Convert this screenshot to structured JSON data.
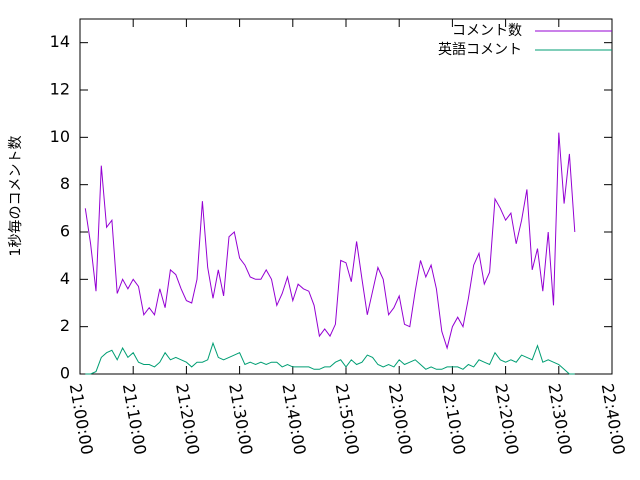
{
  "chart_data": {
    "type": "line",
    "ylabel": "1秒毎のコメント数",
    "x": [
      "21:01:00",
      "21:02:00",
      "21:03:00",
      "21:04:00",
      "21:05:00",
      "21:06:00",
      "21:07:00",
      "21:08:00",
      "21:09:00",
      "21:10:00",
      "21:11:00",
      "21:12:00",
      "21:13:00",
      "21:14:00",
      "21:15:00",
      "21:16:00",
      "21:17:00",
      "21:18:00",
      "21:19:00",
      "21:20:00",
      "21:21:00",
      "21:22:00",
      "21:23:00",
      "21:24:00",
      "21:25:00",
      "21:26:00",
      "21:27:00",
      "21:28:00",
      "21:29:00",
      "21:30:00",
      "21:31:00",
      "21:32:00",
      "21:33:00",
      "21:34:00",
      "21:35:00",
      "21:36:00",
      "21:37:00",
      "21:38:00",
      "21:39:00",
      "21:40:00",
      "21:41:00",
      "21:42:00",
      "21:43:00",
      "21:44:00",
      "21:45:00",
      "21:46:00",
      "21:47:00",
      "21:48:00",
      "21:49:00",
      "21:50:00",
      "21:51:00",
      "21:52:00",
      "21:53:00",
      "21:54:00",
      "21:55:00",
      "21:56:00",
      "21:57:00",
      "21:58:00",
      "21:59:00",
      "22:00:00",
      "22:01:00",
      "22:02:00",
      "22:03:00",
      "22:04:00",
      "22:05:00",
      "22:06:00",
      "22:07:00",
      "22:08:00",
      "22:09:00",
      "22:10:00",
      "22:11:00",
      "22:12:00",
      "22:13:00",
      "22:14:00",
      "22:15:00",
      "22:16:00",
      "22:17:00",
      "22:18:00",
      "22:19:00",
      "22:20:00",
      "22:21:00",
      "22:22:00",
      "22:23:00",
      "22:24:00",
      "22:25:00",
      "22:26:00",
      "22:27:00",
      "22:28:00",
      "22:29:00",
      "22:30:00",
      "22:31:00",
      "22:32:00",
      "22:33:00"
    ],
    "series": [
      {
        "name": "コメント数",
        "color": "#9400d3",
        "values": [
          7.0,
          5.5,
          3.5,
          8.8,
          6.2,
          6.5,
          3.4,
          4.0,
          3.6,
          4.0,
          3.7,
          2.5,
          2.8,
          2.5,
          3.6,
          2.8,
          4.4,
          4.2,
          3.6,
          3.1,
          3.0,
          4.0,
          7.3,
          4.5,
          3.2,
          4.4,
          3.3,
          5.8,
          6.0,
          4.9,
          4.6,
          4.1,
          4.0,
          4.0,
          4.4,
          4.0,
          2.9,
          3.4,
          4.1,
          3.1,
          3.8,
          3.6,
          3.5,
          2.9,
          1.6,
          1.9,
          1.6,
          2.1,
          4.8,
          4.7,
          3.9,
          5.6,
          4.0,
          2.5,
          3.5,
          4.5,
          4.0,
          2.5,
          2.8,
          3.3,
          2.1,
          2.0,
          3.5,
          4.8,
          4.1,
          4.6,
          3.6,
          1.8,
          1.1,
          2.0,
          2.4,
          2.0,
          3.2,
          4.6,
          5.1,
          3.8,
          4.3,
          7.4,
          7.0,
          6.5,
          6.8,
          5.5,
          6.5,
          7.8,
          4.4,
          5.3,
          3.5,
          6.0,
          2.9,
          10.2,
          7.2,
          9.3,
          6.0
        ]
      },
      {
        "name": "英語コメント",
        "color": "#009e73",
        "values": [
          0.0,
          0.0,
          0.1,
          0.7,
          0.9,
          1.0,
          0.6,
          1.1,
          0.7,
          0.9,
          0.5,
          0.4,
          0.4,
          0.3,
          0.5,
          0.9,
          0.6,
          0.7,
          0.6,
          0.5,
          0.3,
          0.5,
          0.5,
          0.6,
          1.3,
          0.7,
          0.6,
          0.7,
          0.8,
          0.9,
          0.4,
          0.5,
          0.4,
          0.5,
          0.4,
          0.5,
          0.5,
          0.3,
          0.4,
          0.3,
          0.3,
          0.3,
          0.3,
          0.2,
          0.2,
          0.3,
          0.3,
          0.5,
          0.6,
          0.3,
          0.6,
          0.4,
          0.5,
          0.8,
          0.7,
          0.4,
          0.3,
          0.4,
          0.3,
          0.6,
          0.4,
          0.5,
          0.6,
          0.4,
          0.2,
          0.3,
          0.2,
          0.2,
          0.3,
          0.3,
          0.3,
          0.2,
          0.4,
          0.3,
          0.6,
          0.5,
          0.4,
          0.9,
          0.6,
          0.5,
          0.6,
          0.5,
          0.8,
          0.7,
          0.6,
          1.2,
          0.5,
          0.6,
          0.5,
          0.4,
          0.2,
          0.0,
          0.0
        ]
      }
    ],
    "xlim": [
      "21:00:00",
      "22:40:00"
    ],
    "xticks": [
      "21:00:00",
      "21:10:00",
      "21:20:00",
      "21:30:00",
      "21:40:00",
      "21:50:00",
      "22:00:00",
      "22:10:00",
      "22:20:00",
      "22:30:00",
      "22:40:00"
    ],
    "ylim": [
      0,
      15
    ],
    "yticks": [
      0,
      2,
      4,
      6,
      8,
      10,
      12,
      14
    ],
    "legend": "top-right"
  }
}
